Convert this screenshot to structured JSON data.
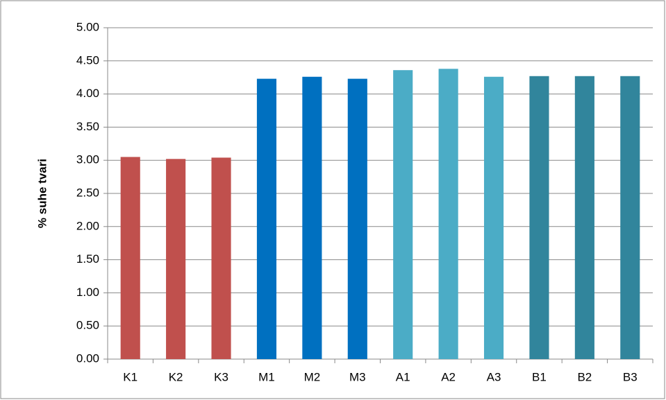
{
  "chart_data": {
    "type": "bar",
    "y_label": "% suhe tvari",
    "categories": [
      "K1",
      "K2",
      "K3",
      "M1",
      "M2",
      "M3",
      "A1",
      "A2",
      "A3",
      "B1",
      "B2",
      "B3"
    ],
    "values": [
      3.05,
      3.02,
      3.04,
      4.23,
      4.26,
      4.23,
      4.36,
      4.38,
      4.26,
      4.27,
      4.27,
      4.27
    ],
    "colors": [
      "#c0504d",
      "#c0504d",
      "#c0504d",
      "#0070c0",
      "#0070c0",
      "#0070c0",
      "#4bacc6",
      "#4bacc6",
      "#4bacc6",
      "#31859c",
      "#31859c",
      "#31859c"
    ],
    "ylim": [
      0,
      5
    ],
    "yticks": [
      {
        "value": 0,
        "label": "0.00"
      },
      {
        "value": 0.5,
        "label": "0.50"
      },
      {
        "value": 1,
        "label": "1.00"
      },
      {
        "value": 1.5,
        "label": "1.50"
      },
      {
        "value": 2,
        "label": "2.00"
      },
      {
        "value": 2.5,
        "label": "2.50"
      },
      {
        "value": 3,
        "label": "3.00"
      },
      {
        "value": 3.5,
        "label": "3.50"
      },
      {
        "value": 4,
        "label": "4.00"
      },
      {
        "value": 4.5,
        "label": "4.50"
      },
      {
        "value": 5,
        "label": "5.00"
      }
    ],
    "grid": true
  }
}
